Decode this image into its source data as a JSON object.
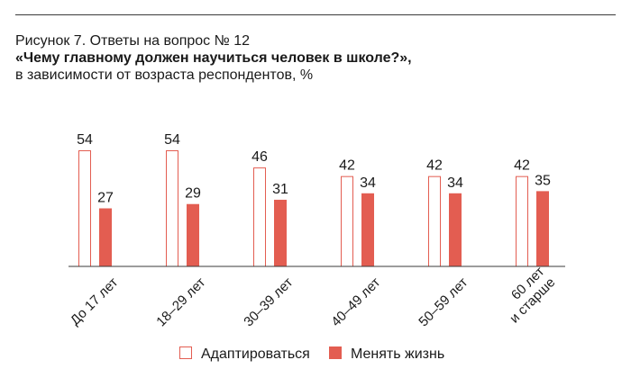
{
  "figure": {
    "label": "Рисунок 7. Ответы на вопрос № 12",
    "question": "«Чему главному должен научиться человек в школе?»,",
    "subtitle": "в зависимости от возраста респондентов, %"
  },
  "colors": {
    "adapt_stroke": "#e35d51",
    "change_fill": "#e35d51",
    "axis": "#3a3a3a",
    "text": "#1a1a1a"
  },
  "chart_data": {
    "type": "bar",
    "title": "Рисунок 7. Ответы на вопрос № 12",
    "categories": [
      [
        "До 17 лет"
      ],
      [
        "18–29 лет"
      ],
      [
        "30–39 лет"
      ],
      [
        "40–49 лет"
      ],
      [
        "50–59 лет"
      ],
      [
        "60 лет",
        "и старше"
      ]
    ],
    "series": [
      {
        "name": "Адаптироваться",
        "values": [
          54,
          54,
          46,
          42,
          42,
          42
        ],
        "style": "outline"
      },
      {
        "name": "Менять жизнь",
        "values": [
          27,
          29,
          31,
          34,
          34,
          35
        ],
        "style": "filled"
      }
    ],
    "ylim": [
      0,
      54
    ],
    "grid": false,
    "data_labels": true,
    "legend_position": "bottom-center",
    "xlabel": "",
    "ylabel": ""
  }
}
